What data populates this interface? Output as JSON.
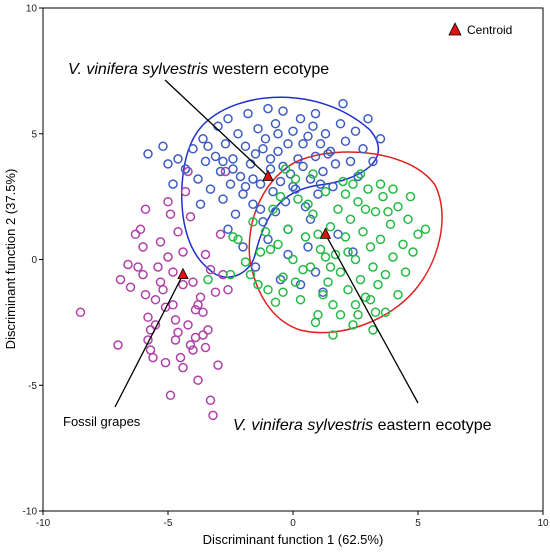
{
  "chart_data": {
    "type": "scatter",
    "xlabel": "Discriminant function 1 (62.5%)",
    "ylabel": "Discriminant function 2 (37.5%)",
    "xlim": [
      -10,
      10
    ],
    "ylim": [
      -10,
      10
    ],
    "x_ticks": [
      -10,
      -5,
      0,
      5,
      10
    ],
    "y_ticks": [
      -10,
      -5,
      0,
      5,
      10
    ],
    "grid": false,
    "legend": {
      "position": "top-right",
      "label": "Centroid"
    },
    "series": [
      {
        "label": "Fossil grapes",
        "color": "#b040a8",
        "points": [
          [
            -8.5,
            -2.1
          ],
          [
            -7.0,
            -3.4
          ],
          [
            -6.9,
            -0.8
          ],
          [
            -6.6,
            -0.2
          ],
          [
            -6.3,
            1.0
          ],
          [
            -6.1,
            1.2
          ],
          [
            -6.0,
            -0.6
          ],
          [
            -5.9,
            -1.4
          ],
          [
            -5.8,
            -3.2
          ],
          [
            -5.7,
            -3.6
          ],
          [
            -5.6,
            -3.9
          ],
          [
            -5.5,
            -2.6
          ],
          [
            -5.4,
            -0.3
          ],
          [
            -5.3,
            0.7
          ],
          [
            -5.2,
            -1.2
          ],
          [
            -5.1,
            -1.9
          ],
          [
            -5.0,
            2.3
          ],
          [
            -4.9,
            -5.4
          ],
          [
            -4.8,
            -0.5
          ],
          [
            -4.7,
            -2.4
          ],
          [
            -4.6,
            1.1
          ],
          [
            -4.5,
            -3.9
          ],
          [
            -4.4,
            -1.0
          ],
          [
            -4.3,
            2.7
          ],
          [
            -4.2,
            -2.6
          ],
          [
            -4.1,
            -3.4
          ],
          [
            -4.0,
            -0.9
          ],
          [
            -3.9,
            -2.0
          ],
          [
            -3.8,
            -4.8
          ],
          [
            -3.7,
            -1.5
          ],
          [
            -3.6,
            -3.0
          ],
          [
            -3.5,
            0.2
          ],
          [
            -3.4,
            -2.8
          ],
          [
            -3.3,
            -5.6
          ],
          [
            -3.2,
            -6.2
          ],
          [
            -3.1,
            -1.3
          ],
          [
            -3.0,
            -4.2
          ],
          [
            -2.9,
            1.0
          ],
          [
            -2.8,
            -0.6
          ],
          [
            -2.7,
            3.5
          ],
          [
            -4.0,
            -3.6
          ],
          [
            -4.7,
            -3.2
          ],
          [
            -5.0,
            0.1
          ],
          [
            -5.5,
            -1.6
          ],
          [
            -6.2,
            -0.3
          ],
          [
            -6.5,
            -1.1
          ],
          [
            -3.6,
            -2.1
          ],
          [
            -4.4,
            0.3
          ],
          [
            -4.1,
            1.7
          ],
          [
            -5.8,
            -2.3
          ],
          [
            -3.9,
            -3.1
          ],
          [
            -4.8,
            -1.8
          ],
          [
            -5.3,
            -0.9
          ],
          [
            -3.3,
            -0.4
          ],
          [
            -6.0,
            0.5
          ],
          [
            -5.7,
            -2.8
          ],
          [
            -4.6,
            -2.9
          ],
          [
            -3.8,
            -1.8
          ],
          [
            -4.9,
            1.8
          ],
          [
            -5.9,
            2.0
          ],
          [
            -4.2,
            3.5
          ],
          [
            -3.5,
            -3.5
          ],
          [
            -2.6,
            -1.2
          ],
          [
            -4.4,
            -4.3
          ],
          [
            -5.1,
            -4.1
          ]
        ]
      },
      {
        "label": "V. vinifera sylvestris western ecotype",
        "color": "#3d5cc4",
        "points": [
          [
            -5.8,
            4.2
          ],
          [
            -5.2,
            4.5
          ],
          [
            -5.0,
            3.8
          ],
          [
            -4.6,
            4.0
          ],
          [
            -4.3,
            3.6
          ],
          [
            -4.0,
            4.4
          ],
          [
            -3.8,
            3.2
          ],
          [
            -3.6,
            4.8
          ],
          [
            -3.5,
            3.9
          ],
          [
            -3.3,
            2.8
          ],
          [
            -3.1,
            4.1
          ],
          [
            -3.0,
            5.3
          ],
          [
            -2.9,
            3.5
          ],
          [
            -2.8,
            2.4
          ],
          [
            -2.7,
            4.6
          ],
          [
            -2.6,
            5.6
          ],
          [
            -2.5,
            3.0
          ],
          [
            -2.4,
            4.0
          ],
          [
            -2.3,
            1.8
          ],
          [
            -2.2,
            5.0
          ],
          [
            -2.1,
            3.3
          ],
          [
            -2.0,
            2.6
          ],
          [
            -1.9,
            4.5
          ],
          [
            -1.8,
            5.8
          ],
          [
            -1.7,
            3.8
          ],
          [
            -1.6,
            2.2
          ],
          [
            -1.5,
            4.2
          ],
          [
            -1.4,
            5.2
          ],
          [
            -1.3,
            3.0
          ],
          [
            -1.2,
            1.5
          ],
          [
            -1.1,
            4.8
          ],
          [
            -1.0,
            6.0
          ],
          [
            -0.9,
            3.6
          ],
          [
            -0.8,
            2.7
          ],
          [
            -0.7,
            5.4
          ],
          [
            -0.6,
            4.3
          ],
          [
            -0.5,
            3.1
          ],
          [
            -0.4,
            5.9
          ],
          [
            -0.3,
            2.3
          ],
          [
            -0.2,
            4.6
          ],
          [
            -0.1,
            3.4
          ],
          [
            0.0,
            5.1
          ],
          [
            0.1,
            2.8
          ],
          [
            0.2,
            4.0
          ],
          [
            0.3,
            5.6
          ],
          [
            0.4,
            3.7
          ],
          [
            0.5,
            2.1
          ],
          [
            0.6,
            4.9
          ],
          [
            0.7,
            3.2
          ],
          [
            0.8,
            5.3
          ],
          [
            0.9,
            4.1
          ],
          [
            1.0,
            2.6
          ],
          [
            1.1,
            4.6
          ],
          [
            1.2,
            3.5
          ],
          [
            1.3,
            5.0
          ],
          [
            1.5,
            4.3
          ],
          [
            1.7,
            3.8
          ],
          [
            1.9,
            5.4
          ],
          [
            2.1,
            4.7
          ],
          [
            2.3,
            3.9
          ],
          [
            2.5,
            5.1
          ],
          [
            2.8,
            4.4
          ],
          [
            3.0,
            5.6
          ],
          [
            3.2,
            3.9
          ],
          [
            3.5,
            4.8
          ],
          [
            -2.0,
            0.5
          ],
          [
            -1.5,
            -0.3
          ],
          [
            -1.0,
            0.8
          ],
          [
            -0.5,
            -0.8
          ],
          [
            -0.2,
            0.2
          ],
          [
            0.3,
            -1.0
          ],
          [
            0.6,
            0.5
          ],
          [
            0.9,
            -0.5
          ],
          [
            1.2,
            -1.3
          ],
          [
            -2.4,
            3.6
          ],
          [
            -1.6,
            3.2
          ],
          [
            -0.9,
            4.0
          ],
          [
            -0.4,
            3.7
          ],
          [
            0.4,
            4.6
          ],
          [
            1.4,
            4.2
          ],
          [
            -3.4,
            4.5
          ],
          [
            -2.8,
            3.9
          ],
          [
            -1.2,
            4.4
          ],
          [
            -0.6,
            5.0
          ],
          [
            0.9,
            5.8
          ],
          [
            2.0,
            6.2
          ],
          [
            1.6,
            2.9
          ],
          [
            2.6,
            3.3
          ],
          [
            -1.9,
            2.9
          ],
          [
            -3.7,
            2.2
          ],
          [
            -4.8,
            3.0
          ],
          [
            -0.2,
            1.2
          ],
          [
            0.7,
            1.6
          ],
          [
            1.8,
            1.0
          ],
          [
            2.4,
            0.3
          ],
          [
            -2.6,
            1.2
          ],
          [
            -1.3,
            2.0
          ],
          [
            0.0,
            2.9
          ],
          [
            -0.7,
            1.9
          ],
          [
            1.1,
            3.0
          ]
        ]
      },
      {
        "label": "V. vinifera sylvestris eastern ecotype",
        "color": "#22bb44",
        "points": [
          [
            -2.5,
            -0.6
          ],
          [
            -2.2,
            0.8
          ],
          [
            -1.9,
            -0.1
          ],
          [
            -1.6,
            1.5
          ],
          [
            -1.3,
            0.3
          ],
          [
            -1.0,
            -1.2
          ],
          [
            -0.8,
            2.0
          ],
          [
            -0.6,
            0.6
          ],
          [
            -0.4,
            -0.7
          ],
          [
            -0.2,
            1.2
          ],
          [
            0.0,
            0.0
          ],
          [
            0.2,
            2.4
          ],
          [
            0.3,
            -1.6
          ],
          [
            0.5,
            0.9
          ],
          [
            0.7,
            -0.3
          ],
          [
            0.8,
            1.8
          ],
          [
            1.0,
            -2.2
          ],
          [
            1.1,
            0.4
          ],
          [
            1.3,
            2.7
          ],
          [
            1.4,
            -0.9
          ],
          [
            1.5,
            1.3
          ],
          [
            1.6,
            -1.8
          ],
          [
            1.7,
            0.2
          ],
          [
            1.8,
            2.0
          ],
          [
            1.9,
            -0.5
          ],
          [
            2.0,
            3.1
          ],
          [
            2.1,
            0.9
          ],
          [
            2.2,
            -1.2
          ],
          [
            2.3,
            1.6
          ],
          [
            2.4,
            -2.6
          ],
          [
            2.5,
            0.0
          ],
          [
            2.6,
            2.3
          ],
          [
            2.7,
            -0.8
          ],
          [
            2.8,
            1.1
          ],
          [
            2.9,
            -1.5
          ],
          [
            3.0,
            2.8
          ],
          [
            3.1,
            0.5
          ],
          [
            3.2,
            -0.3
          ],
          [
            3.3,
            1.9
          ],
          [
            3.4,
            -1.0
          ],
          [
            3.5,
            0.8
          ],
          [
            3.6,
            2.5
          ],
          [
            3.7,
            -0.6
          ],
          [
            3.9,
            1.4
          ],
          [
            4.0,
            0.1
          ],
          [
            4.2,
            2.1
          ],
          [
            4.4,
            0.6
          ],
          [
            4.6,
            1.6
          ],
          [
            5.0,
            1.0
          ],
          [
            5.3,
            1.2
          ],
          [
            3.2,
            -2.8
          ],
          [
            2.6,
            -2.2
          ],
          [
            1.6,
            -3.0
          ],
          [
            0.9,
            -2.5
          ],
          [
            -0.7,
            -1.7
          ],
          [
            -1.4,
            -1.0
          ],
          [
            -2.4,
            0.9
          ],
          [
            -3.4,
            -0.8
          ],
          [
            -1.7,
            -0.6
          ],
          [
            -0.4,
            -1.3
          ],
          [
            0.4,
            -0.4
          ],
          [
            1.0,
            1.0
          ],
          [
            2.1,
            2.6
          ],
          [
            2.7,
            3.4
          ],
          [
            3.5,
            3.0
          ],
          [
            4.0,
            2.8
          ],
          [
            4.7,
            2.5
          ],
          [
            0.1,
            3.2
          ],
          [
            -0.3,
            3.6
          ],
          [
            0.8,
            3.4
          ],
          [
            1.3,
            0.1
          ],
          [
            1.9,
            -2.2
          ],
          [
            2.5,
            -1.8
          ],
          [
            3.1,
            -1.6
          ],
          [
            3.7,
            -2.1
          ],
          [
            4.2,
            -1.4
          ],
          [
            4.5,
            -0.5
          ],
          [
            1.2,
            -1.4
          ],
          [
            -0.9,
            0.4
          ],
          [
            -1.1,
            1.1
          ],
          [
            0.6,
            2.2
          ],
          [
            2.9,
            2.0
          ],
          [
            3.8,
            1.9
          ],
          [
            4.8,
            0.3
          ],
          [
            2.2,
            0.3
          ],
          [
            1.5,
            -0.3
          ],
          [
            0.1,
            -0.9
          ],
          [
            -0.5,
            2.5
          ],
          [
            2.4,
            3.0
          ],
          [
            3.3,
            -2.1
          ]
        ]
      }
    ],
    "centroids": [
      {
        "x": -4.4,
        "y": -0.6
      },
      {
        "x": -1.0,
        "y": 3.3
      },
      {
        "x": 1.3,
        "y": 1.0
      }
    ],
    "annotations": [
      {
        "text_italic": "V. vinifera sylvestris",
        "text": " western ecotype",
        "target": [
          -1.0,
          3.3
        ],
        "anchor": [
          -6.5,
          7.9
        ]
      },
      {
        "text": "Fossil grapes",
        "target": [
          -4.4,
          -0.6
        ],
        "anchor": [
          -9.5,
          -7.0
        ]
      },
      {
        "text_italic": "V. vinifera sylvestris",
        "text": " eastern ecotype",
        "target": [
          1.3,
          1.0
        ],
        "anchor": [
          5.4,
          -6.0
        ]
      }
    ],
    "hull_colors": [
      "#1e2fcc",
      "#e02020"
    ]
  }
}
